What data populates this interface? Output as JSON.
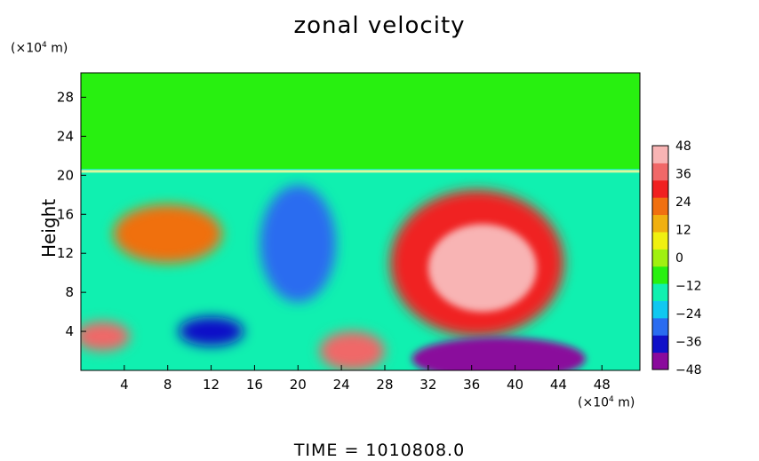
{
  "chart_data": {
    "type": "heatmap",
    "title": "zonal velocity",
    "ylabel": "Height",
    "xunit_prefix": "(×10",
    "xunit_exp": "4",
    "xunit_suffix": " m)",
    "yunit_prefix": "(×10",
    "yunit_exp": "4",
    "yunit_suffix": " m)",
    "footer": "TIME  =  1010808.0",
    "xlim": [
      0,
      51.5
    ],
    "ylim": [
      0,
      30.5
    ],
    "x_ticks": [
      4,
      8,
      12,
      16,
      20,
      24,
      28,
      32,
      36,
      40,
      44,
      48
    ],
    "y_ticks": [
      4,
      8,
      12,
      16,
      20,
      24,
      28
    ],
    "colorbar": {
      "min": -48,
      "max": 48,
      "ticks": [
        48,
        36,
        24,
        12,
        0,
        -12,
        -24,
        -36,
        -48
      ],
      "colors": [
        "#8a0a9c",
        "#1010c8",
        "#2a6cf0",
        "#10c8f0",
        "#10f0b0",
        "#28f010",
        "#a0f010",
        "#f0f010",
        "#f0b010",
        "#f07010",
        "#f02020",
        "#f06868",
        "#f8b4b4"
      ]
    },
    "tropopause_height": 20.4,
    "features": [
      {
        "name": "upper-jet-core",
        "x": 37,
        "y": 10.5,
        "rx": 5,
        "ry": 4.5,
        "value": 48
      },
      {
        "name": "upper-jet-shell",
        "x": 36.5,
        "y": 11,
        "rx": 8,
        "ry": 7.5,
        "value": 34
      },
      {
        "name": "surface-easterly",
        "x": 38.5,
        "y": 1.2,
        "rx": 8,
        "ry": 2.2,
        "value": -48
      },
      {
        "name": "easterly-band",
        "x": 20,
        "y": 13,
        "rx": 3.5,
        "ry": 6,
        "value": -32
      },
      {
        "name": "low-easterly",
        "x": 12,
        "y": 4,
        "rx": 3,
        "ry": 1.5,
        "value": -40
      },
      {
        "name": "westerly-left",
        "x": 8,
        "y": 14,
        "rx": 5,
        "ry": 3,
        "value": 20
      },
      {
        "name": "surface-westerly",
        "x": 25,
        "y": 2,
        "rx": 3,
        "ry": 2,
        "value": 36
      },
      {
        "name": "left-low-jet",
        "x": 2,
        "y": 3.5,
        "rx": 2.5,
        "ry": 1.5,
        "value": 38
      }
    ]
  }
}
